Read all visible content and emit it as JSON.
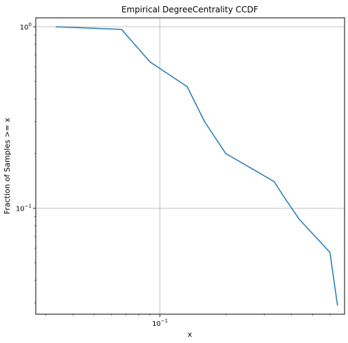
{
  "chart_data": {
    "type": "line",
    "title": "Empirical DegreeCentrality CCDF",
    "xlabel": "x",
    "ylabel": "Fraction of Samples >= x",
    "xscale": "log",
    "yscale": "log",
    "xlim": [
      0.027,
      0.7
    ],
    "ylim": [
      0.026,
      1.12
    ],
    "grid": true,
    "color": "#1f77b4",
    "x_ticks": [
      {
        "value": 0.1,
        "label": "10",
        "exp": "−1"
      }
    ],
    "y_ticks": [
      {
        "value": 1,
        "label": "10",
        "exp": "0"
      },
      {
        "value": 0.1,
        "label": "10",
        "exp": "−1"
      }
    ],
    "series": [
      {
        "x": [
          0.0333,
          0.0667,
          0.09,
          0.1333,
          0.16,
          0.2,
          0.3333,
          0.3667,
          0.4333,
          0.6,
          0.65
        ],
        "y": [
          1.0,
          0.967,
          0.64,
          0.467,
          0.3,
          0.2,
          0.14,
          0.117,
          0.087,
          0.057,
          0.029
        ]
      }
    ]
  }
}
